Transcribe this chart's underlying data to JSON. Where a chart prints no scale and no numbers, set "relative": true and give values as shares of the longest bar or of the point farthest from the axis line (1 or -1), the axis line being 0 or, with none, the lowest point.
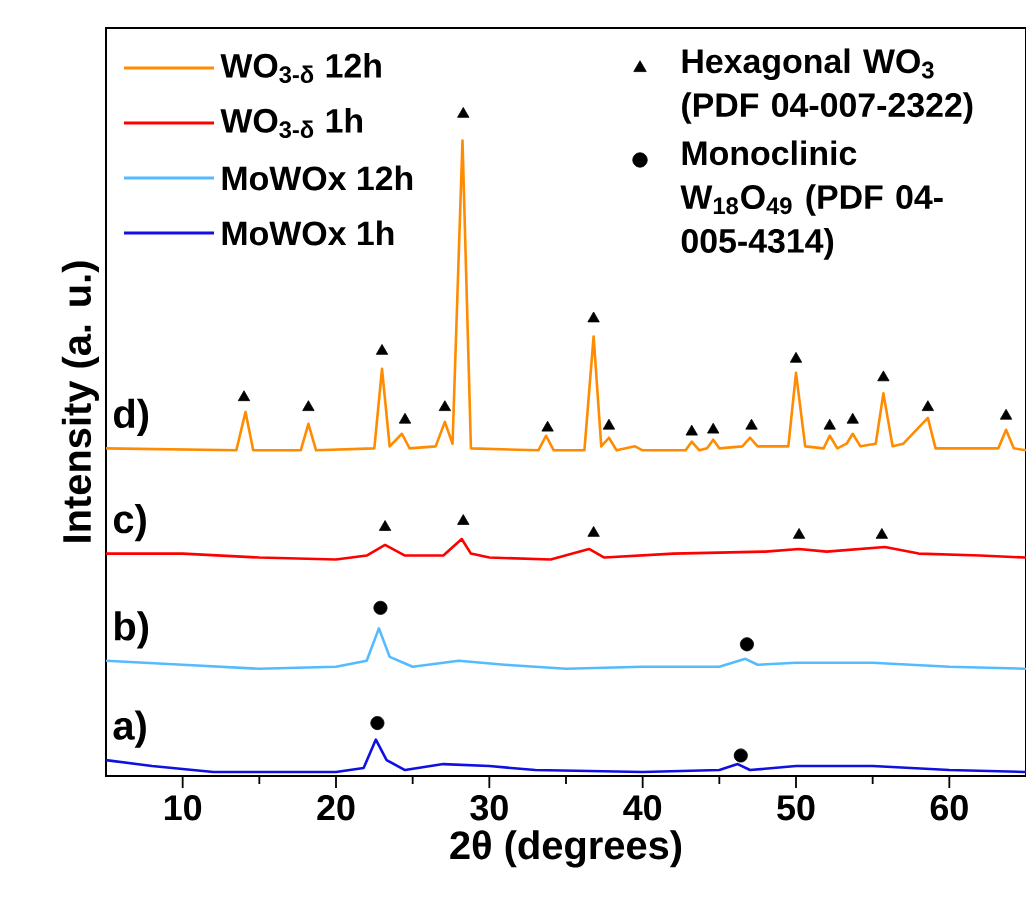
{
  "chart_data": {
    "type": "line",
    "relative": true,
    "xlabel": "2θ (degrees)",
    "ylabel": "Intensity (a. u.)",
    "xlim": [
      5,
      65
    ],
    "xticks": [
      10,
      20,
      30,
      40,
      50,
      60
    ],
    "grid": false,
    "legend": "top",
    "annotations": [
      "a)",
      "b)",
      "c)",
      "d)"
    ],
    "series": [
      {
        "name": "WO$_{3-δ}$ 12h",
        "color": "#ff8c00",
        "x": [
          5,
          13.5,
          14.1,
          14.6,
          17.7,
          18.2,
          18.7,
          22.5,
          23.0,
          23.5,
          24.3,
          24.8,
          26.5,
          27.1,
          27.6,
          28.25,
          28.8,
          33.2,
          33.7,
          34.2,
          36.2,
          36.8,
          37.3,
          37.8,
          38.3,
          39.5,
          40,
          42.8,
          43.2,
          43.7,
          44.2,
          44.6,
          45,
          46.5,
          47.0,
          47.5,
          49.5,
          50.0,
          50.6,
          51.8,
          52.2,
          52.7,
          53.3,
          53.7,
          54.2,
          55.2,
          55.7,
          56.3,
          57,
          58.6,
          59.1,
          63.2,
          63.7,
          64.2,
          65
        ],
        "values": [
          0.495,
          0.492,
          0.55,
          0.492,
          0.492,
          0.532,
          0.492,
          0.495,
          0.615,
          0.498,
          0.517,
          0.495,
          0.498,
          0.535,
          0.502,
          0.96,
          0.495,
          0.492,
          0.514,
          0.492,
          0.492,
          0.664,
          0.498,
          0.511,
          0.492,
          0.498,
          0.492,
          0.492,
          0.505,
          0.492,
          0.495,
          0.508,
          0.495,
          0.498,
          0.511,
          0.498,
          0.498,
          0.609,
          0.498,
          0.495,
          0.514,
          0.495,
          0.502,
          0.517,
          0.498,
          0.502,
          0.578,
          0.498,
          0.502,
          0.541,
          0.495,
          0.495,
          0.523,
          0.495,
          0.492
        ]
      },
      {
        "name": "WO$_{3-δ}$ 1h",
        "color": "#ff0000",
        "x": [
          5,
          10,
          15,
          20,
          22,
          23.2,
          24.5,
          27,
          28.2,
          28.8,
          30,
          34,
          36.5,
          37.5,
          42,
          48,
          50.2,
          52,
          55.8,
          58,
          62,
          65
        ],
        "values": [
          0.336,
          0.336,
          0.33,
          0.327,
          0.333,
          0.349,
          0.333,
          0.333,
          0.358,
          0.336,
          0.33,
          0.327,
          0.343,
          0.33,
          0.336,
          0.339,
          0.343,
          0.339,
          0.346,
          0.336,
          0.333,
          0.33
        ]
      },
      {
        "name": "MoWOx 12h",
        "color": "#55bbff",
        "x": [
          5,
          10,
          15,
          20,
          22.0,
          22.8,
          23.5,
          25,
          28,
          31,
          35,
          40,
          45,
          46.7,
          47.5,
          50,
          55,
          60,
          65
        ],
        "values": [
          0.174,
          0.168,
          0.162,
          0.165,
          0.174,
          0.223,
          0.18,
          0.165,
          0.174,
          0.168,
          0.162,
          0.165,
          0.165,
          0.177,
          0.168,
          0.171,
          0.171,
          0.165,
          0.162
        ]
      },
      {
        "name": "MoWOx 1h",
        "color": "#1010e0",
        "x": [
          5,
          8,
          12,
          20,
          21.8,
          22.6,
          23.3,
          24.5,
          27,
          30,
          33,
          40,
          45,
          46.2,
          47,
          50,
          55,
          60,
          65
        ],
        "values": [
          0.024,
          0.015,
          0.006,
          0.006,
          0.012,
          0.055,
          0.024,
          0.009,
          0.018,
          0.015,
          0.009,
          0.006,
          0.009,
          0.018,
          0.009,
          0.015,
          0.015,
          0.009,
          0.006
        ]
      },
      {
        "name": "Hexagonal WO$_{3}$ (PDF 04-007-2322)",
        "type": "scatter",
        "marker": "triangle",
        "color": "#000000",
        "x": [
          14.0,
          18.2,
          23.0,
          24.5,
          27.1,
          28.3,
          33.8,
          36.8,
          37.8,
          43.2,
          44.6,
          47.1,
          50.0,
          52.2,
          53.7,
          55.7,
          58.6,
          63.7,
          23.2,
          28.3,
          36.8,
          50.2,
          55.6
        ],
        "values": [
          0.572,
          0.557,
          0.642,
          0.538,
          0.557,
          1.0,
          0.526,
          0.691,
          0.529,
          0.52,
          0.523,
          0.529,
          0.63,
          0.529,
          0.538,
          0.602,
          0.557,
          0.544,
          0.376,
          0.385,
          0.367,
          0.364,
          0.364
        ]
      },
      {
        "name": "Monoclinic W$_{18}$O$_{49}$ (PDF 04-005-4314)",
        "type": "scatter",
        "marker": "circle",
        "color": "#000000",
        "x": [
          22.9,
          46.8,
          22.7,
          46.4
        ],
        "values": [
          0.254,
          0.199,
          0.08,
          0.031
        ]
      }
    ]
  }
}
